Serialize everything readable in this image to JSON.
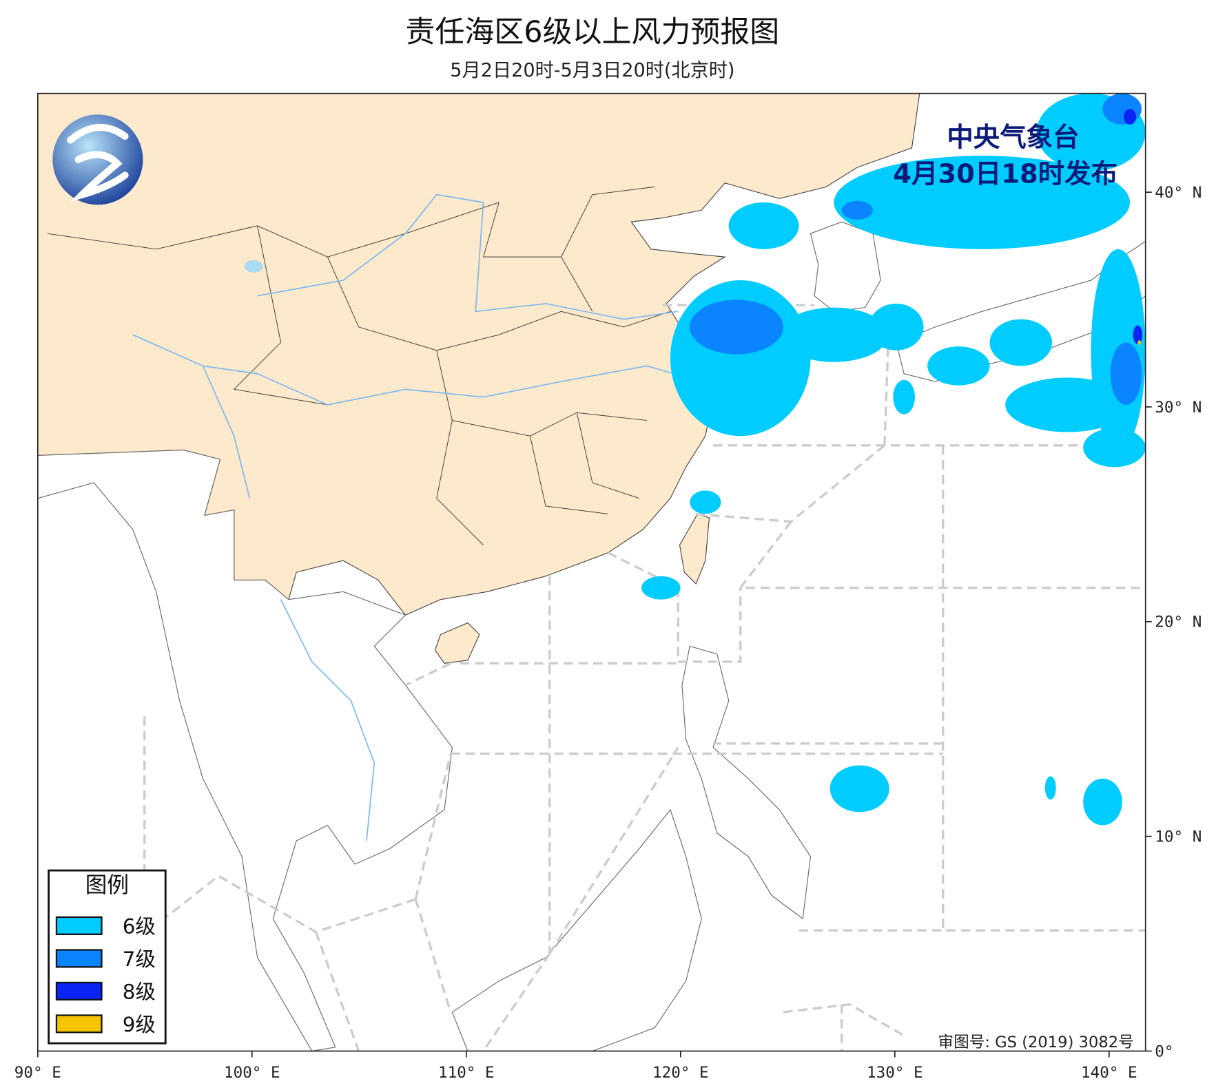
{
  "header": {
    "title": "责任海区6级以上风力预报图",
    "subtitle": "5月2日20时-5月3日20时(北京时)",
    "issuer": "中央气象台",
    "issue_time": "4月30日18时发布"
  },
  "footer": {
    "approval": "审图号: GS (2019) 3082号"
  },
  "map": {
    "xlim": [
      90,
      141.7
    ],
    "ylim": [
      0,
      44.6
    ],
    "xticks": [
      {
        "value": 90,
        "label": "90° E"
      },
      {
        "value": 100,
        "label": "100° E"
      },
      {
        "value": 110,
        "label": "110° E"
      },
      {
        "value": 120,
        "label": "120° E"
      },
      {
        "value": 130,
        "label": "130° E"
      },
      {
        "value": 140,
        "label": "140° E"
      }
    ],
    "yticks": [
      {
        "value": 0,
        "label": "0°"
      },
      {
        "value": 10,
        "label": "10° N"
      },
      {
        "value": 20,
        "label": "20° N"
      },
      {
        "value": 30,
        "label": "30° N"
      },
      {
        "value": 40,
        "label": "40° N"
      }
    ]
  },
  "legend": {
    "title": "图例",
    "items": [
      {
        "label": "6级",
        "color": "#00ccff"
      },
      {
        "label": "7级",
        "color": "#0a84ff"
      },
      {
        "label": "8级",
        "color": "#0b23f5"
      },
      {
        "label": "9级",
        "color": "#f5c400"
      }
    ]
  }
}
